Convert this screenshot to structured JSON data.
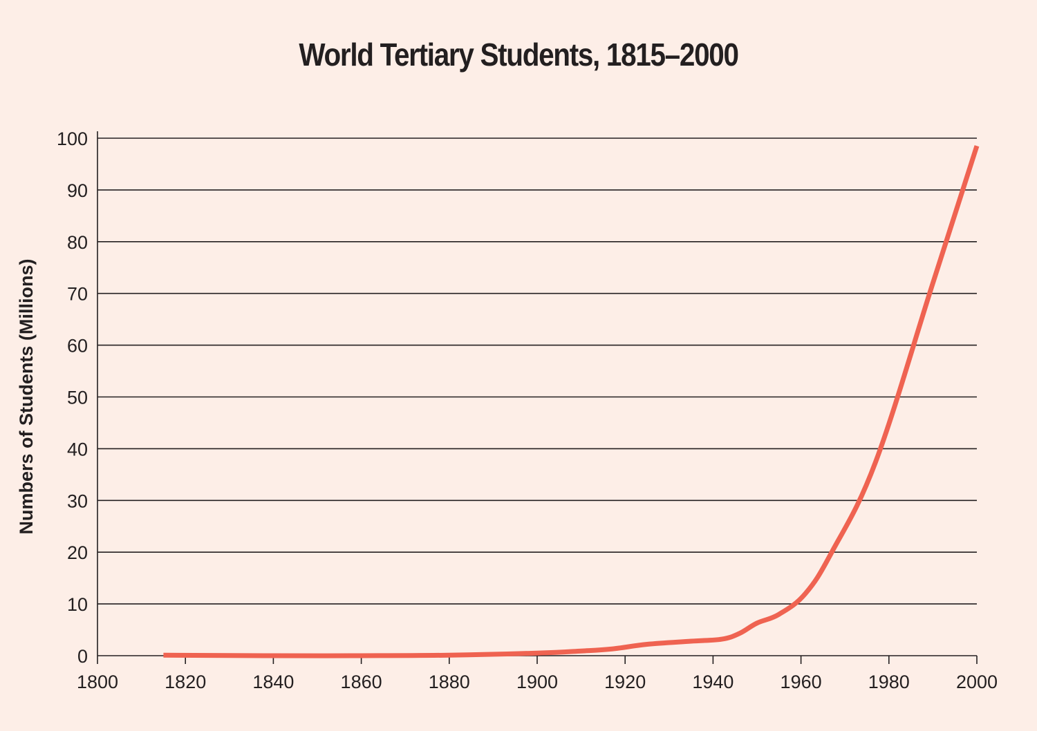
{
  "chart_data": {
    "type": "line",
    "title": "World Tertiary Students, 1815–2000",
    "xlabel": "",
    "ylabel": "Numbers of Students (Millions)",
    "xlim": [
      1800,
      2000
    ],
    "ylim": [
      0,
      100
    ],
    "xticks": [
      1800,
      1820,
      1840,
      1860,
      1880,
      1900,
      1920,
      1940,
      1960,
      1980,
      2000
    ],
    "yticks": [
      0,
      10,
      20,
      30,
      40,
      50,
      60,
      70,
      80,
      90,
      100
    ],
    "grid": "horizontal",
    "series": [
      {
        "name": "World tertiary students",
        "color": "#ef6351",
        "x": [
          1815,
          1840,
          1860,
          1880,
          1900,
          1910,
          1917,
          1925,
          1935,
          1942,
          1946,
          1950,
          1955,
          1961,
          1967,
          1977,
          1990,
          2000
        ],
        "y": [
          0.1,
          0,
          0,
          0.1,
          0.5,
          0.9,
          1.3,
          2.2,
          2.8,
          3.2,
          4.3,
          6.3,
          8,
          12,
          20,
          37.5,
          72,
          98.5
        ]
      }
    ]
  }
}
